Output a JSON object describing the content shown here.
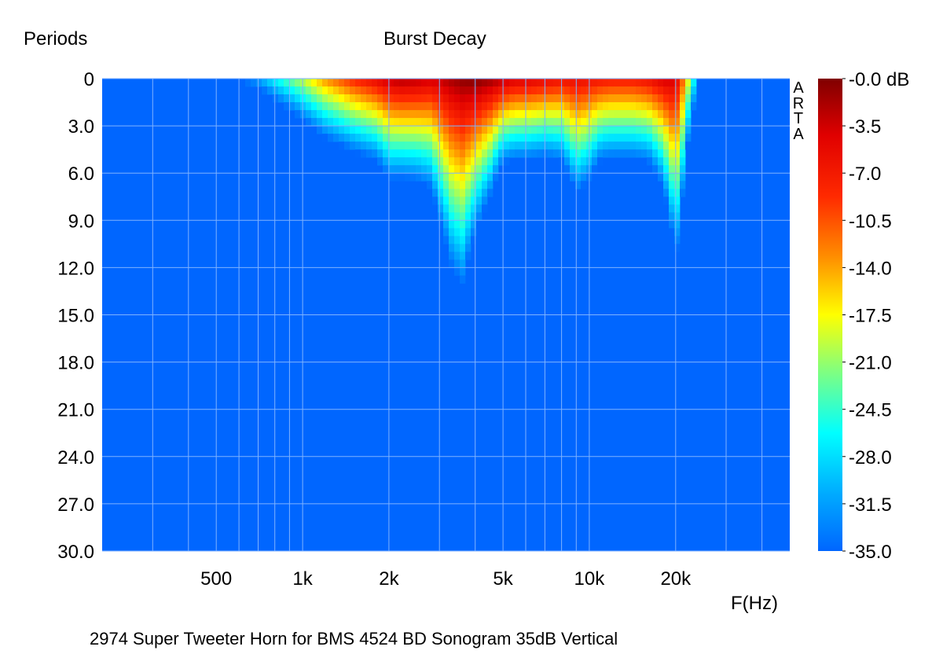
{
  "chart_data": {
    "type": "heatmap",
    "title": "Burst Decay",
    "ylabel": "Periods",
    "xlabel": "F(Hz)",
    "caption": "2974 Super Tweeter Horn for BMS 4524  BD Sonogram 35dB Vertical",
    "watermark": "ARTA",
    "x_scale": "log",
    "xlim": [
      200,
      50000
    ],
    "x_ticks": [
      {
        "value": 500,
        "label": "500"
      },
      {
        "value": 1000,
        "label": "1k"
      },
      {
        "value": 2000,
        "label": "2k"
      },
      {
        "value": 5000,
        "label": "5k"
      },
      {
        "value": 10000,
        "label": "10k"
      },
      {
        "value": 20000,
        "label": "20k"
      }
    ],
    "ylim": [
      0,
      30
    ],
    "y_reversed": true,
    "y_ticks": [
      {
        "value": 0,
        "label": "0"
      },
      {
        "value": 3,
        "label": "3.0"
      },
      {
        "value": 6,
        "label": "6.0"
      },
      {
        "value": 9,
        "label": "9.0"
      },
      {
        "value": 12,
        "label": "12.0"
      },
      {
        "value": 15,
        "label": "15.0"
      },
      {
        "value": 18,
        "label": "18.0"
      },
      {
        "value": 21,
        "label": "21.0"
      },
      {
        "value": 24,
        "label": "24.0"
      },
      {
        "value": 27,
        "label": "27.0"
      },
      {
        "value": 30,
        "label": "30.0"
      }
    ],
    "colorbar": {
      "range_db": [
        -35,
        0
      ],
      "ticks": [
        "-0.0 dB",
        "-3.5",
        "-7.0",
        "-10.5",
        "-14.0",
        "-17.5",
        "-21.0",
        "-24.5",
        "-28.0",
        "-31.5",
        "-35.0"
      ]
    },
    "grid": true,
    "background_color": "#0066ff",
    "grid_color": "#7fb2ff",
    "response_profile": {
      "frequencies_hz": [
        600,
        700,
        800,
        1000,
        1200,
        1500,
        1800,
        2000,
        2200,
        2500,
        2800,
        3000,
        3300,
        3600,
        4000,
        4500,
        5000,
        5500,
        6000,
        7000,
        8000,
        9000,
        10000,
        11000,
        12000,
        14000,
        16000,
        18000,
        19000,
        20000,
        21000,
        22000,
        23000,
        24000
      ],
      "peak_db": [
        -34,
        -31,
        -26,
        -19,
        -13,
        -8,
        -5,
        -3,
        -2,
        -2.5,
        -3.5,
        -3,
        -1.5,
        -0.5,
        0,
        -1,
        -2.5,
        -4,
        -4,
        -5,
        -6,
        -5.5,
        -6,
        -6.5,
        -7,
        -7,
        -6,
        -4,
        -3.5,
        -4.5,
        -10,
        -17,
        -25,
        -34
      ],
      "decay_db_per_period": [
        6.5,
        6.5,
        6.5,
        6,
        5.8,
        5.8,
        5.8,
        5,
        5.2,
        5,
        4.5,
        3.5,
        2.8,
        2.6,
        3.5,
        4.5,
        6,
        6,
        6,
        6,
        5.5,
        4,
        4.5,
        5.5,
        5.5,
        5.5,
        5.5,
        4.5,
        3.5,
        2.6,
        3,
        4,
        4.5,
        4.5
      ]
    }
  }
}
